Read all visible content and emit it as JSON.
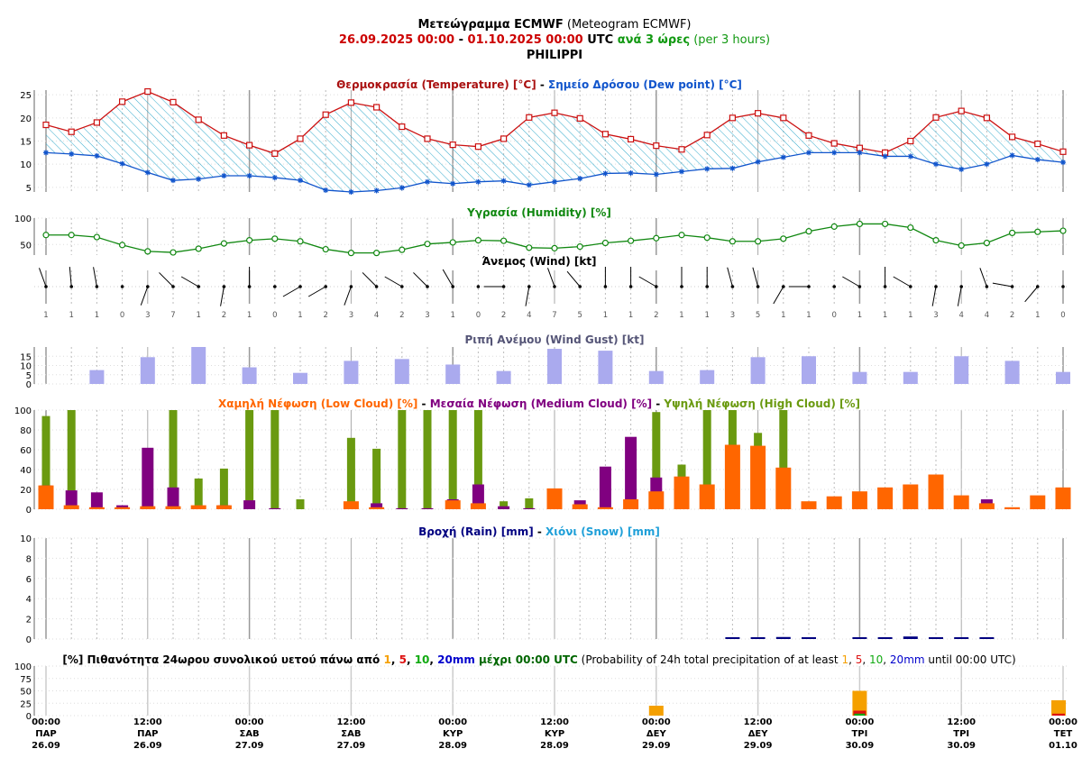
{
  "header": {
    "line1_bold": "Μετεώγραμμα ECMWF",
    "line1_normal": " (Meteogram ECMWF)",
    "date_start": "26.09.2025 00:00",
    "date_sep": " - ",
    "date_end": "01.10.2025 00:00",
    "utc": " UTC ",
    "every3": "ανά 3 ώρες",
    "per3": " (per 3 hours)",
    "location": "PHILIPPI"
  },
  "colors": {
    "temperature": "#cc1111",
    "dewpoint": "#1155cc",
    "humidity": "#118811",
    "gust": "#aaaaee",
    "gust_title": "#555577",
    "low_cloud": "#ff6600",
    "med_cloud": "#800080",
    "high_cloud": "#6a9a10",
    "rain": "#000080",
    "snow": "#1e9fd8",
    "p1": "#f5a000",
    "p5": "#dd1111",
    "p10": "#11aa11",
    "p20": "#0000cc",
    "hatch": "#33aacc",
    "grid": "#aaaaaa"
  },
  "chart_data": [
    {
      "type": "line",
      "id": "temperature",
      "title_parts": [
        {
          "text": "Θερμοκρασία (Temperature) [°C]",
          "color": "#aa1111"
        },
        {
          "text": " - ",
          "color": "#000000"
        },
        {
          "text": "Σημείο Δρόσου (Dew point) [°C]",
          "color": "#1155cc"
        }
      ],
      "ylim": [
        4,
        26
      ],
      "yticks": [
        5,
        10,
        15,
        20,
        25
      ],
      "series": [
        {
          "values": [
            18.5,
            17,
            19,
            23.5,
            25.7,
            23.4,
            19.6,
            16.2,
            14.1,
            12.3,
            15.5,
            20.7,
            23.3,
            22.3,
            18.1,
            15.5,
            14.2,
            13.8,
            15.5,
            20.1,
            21.1,
            19.9,
            16.5,
            15.4,
            14,
            13.2,
            16.3,
            20,
            21,
            20,
            16.2,
            14.5,
            13.5,
            12.5,
            15,
            20.1,
            21.5,
            20,
            15.9,
            14.4,
            12.7
          ]
        },
        {
          "values": [
            12.5,
            12.2,
            11.8,
            10.1,
            8.2,
            6.5,
            6.8,
            7.5,
            7.5,
            7.1,
            6.5,
            4.4,
            4,
            4.3,
            4.9,
            6.2,
            5.8,
            6.2,
            6.4,
            5.5,
            6.2,
            6.9,
            8,
            8.1,
            7.8,
            8.4,
            9,
            9.1,
            10.5,
            11.5,
            12.5,
            12.5,
            12.5,
            11.7,
            11.7,
            10,
            8.9,
            10,
            11.9,
            11,
            10.4
          ]
        }
      ]
    },
    {
      "type": "line",
      "id": "humidity",
      "title_parts": [
        {
          "text": "Υγρασία (Humidity) [%]",
          "color": "#118811"
        }
      ],
      "ylim": [
        30,
        100
      ],
      "yticks": [
        50,
        100
      ],
      "values": [
        68,
        68,
        64,
        49,
        37,
        35,
        42,
        52,
        58,
        61,
        56,
        41,
        34,
        34,
        40,
        51,
        54,
        58,
        57,
        44,
        43,
        46,
        53,
        57,
        62,
        68,
        63,
        56,
        56,
        61,
        75,
        84,
        89,
        89,
        82,
        58,
        48,
        53,
        72,
        74,
        76
      ]
    },
    {
      "type": "table",
      "id": "wind",
      "title_parts": [
        {
          "text": "Άνεμος (Wind) [kt]",
          "color": "#000000"
        }
      ],
      "speeds": [
        1,
        1,
        1,
        0,
        3,
        7,
        1,
        2,
        1,
        0,
        1,
        2,
        3,
        4,
        2,
        3,
        1,
        0,
        2,
        4,
        7,
        5,
        1,
        1,
        2,
        1,
        1,
        3,
        5,
        1,
        1,
        0,
        1,
        1,
        1,
        3,
        4,
        4,
        2,
        1,
        0
      ],
      "directions_deg": [
        340,
        355,
        350,
        0,
        200,
        315,
        300,
        190,
        0,
        0,
        240,
        240,
        200,
        315,
        300,
        315,
        330,
        0,
        270,
        190,
        340,
        320,
        0,
        0,
        300,
        0,
        0,
        345,
        345,
        210,
        270,
        270,
        300,
        0,
        300,
        190,
        190,
        340,
        280,
        220,
        0
      ]
    },
    {
      "type": "bar",
      "id": "gust",
      "title_parts": [
        {
          "text": "Ριπή Ανέμου (Wind Gust) [kt]",
          "color": "#555577"
        }
      ],
      "ylim": [
        0,
        20
      ],
      "yticks": [
        0,
        5,
        10,
        15
      ],
      "values": [
        null,
        null,
        7.5,
        null,
        14.5,
        null,
        20,
        null,
        9,
        null,
        6,
        null,
        12.5,
        null,
        13.5,
        null,
        10.5,
        null,
        7,
        null,
        19,
        null,
        18,
        null,
        7,
        null,
        7.5,
        null,
        14.5,
        null,
        15,
        null,
        6.5,
        null,
        6.5,
        null,
        15,
        null,
        12.5,
        null,
        6.5
      ]
    },
    {
      "type": "bar",
      "id": "clouds",
      "title_parts": [
        {
          "text": "Χαμηλή Νέφωση (Low Cloud) [%]",
          "color": "#ff6600"
        },
        {
          "text": " - ",
          "color": "#000000"
        },
        {
          "text": "Μεσαία Νέφωση (Medium Cloud) [%]",
          "color": "#800080"
        },
        {
          "text": " - ",
          "color": "#000000"
        },
        {
          "text": "Υψηλή Νέφωση (High Cloud) [%]",
          "color": "#6a9a10"
        }
      ],
      "ylim": [
        0,
        100
      ],
      "yticks": [
        0,
        20,
        40,
        60,
        80,
        100
      ],
      "series": [
        {
          "values": [
            94,
            100,
            0,
            0,
            0,
            100,
            31,
            41,
            100,
            100,
            10,
            0,
            72,
            61,
            100,
            100,
            100,
            100,
            8,
            11,
            0,
            0,
            0,
            0,
            98,
            45,
            100,
            100,
            77,
            100,
            0,
            0,
            0,
            0,
            0,
            0,
            0,
            0,
            0,
            0,
            0
          ]
        },
        {
          "values": [
            24,
            19,
            17,
            4,
            62,
            22,
            3,
            4,
            9,
            1,
            0,
            0,
            3,
            6,
            1,
            1,
            10,
            25,
            3,
            1,
            1,
            9,
            43,
            73,
            32,
            13,
            0,
            0,
            0,
            0,
            0,
            0,
            0,
            0,
            0,
            0,
            0,
            10,
            0,
            0,
            0
          ]
        },
        {
          "values": [
            24,
            4,
            2,
            2,
            3,
            3,
            4,
            4,
            0,
            0,
            0,
            0,
            8,
            2,
            0,
            0,
            9,
            6,
            0,
            0,
            21,
            5,
            2,
            10,
            18,
            33,
            25,
            65,
            64,
            42,
            8,
            13,
            18,
            22,
            25,
            35,
            14,
            6,
            2,
            14,
            22
          ]
        }
      ]
    },
    {
      "type": "bar",
      "id": "precip",
      "title_parts": [
        {
          "text": "Βροχή (Rain) [mm]",
          "color": "#000080"
        },
        {
          "text": " - ",
          "color": "#000000"
        },
        {
          "text": "Χιόνι (Snow) [mm]",
          "color": "#1e9fd8"
        }
      ],
      "ylim": [
        0,
        10
      ],
      "yticks": [
        0,
        2,
        4,
        6,
        8,
        10
      ],
      "series": [
        {
          "values": [
            0,
            0,
            0,
            0,
            0,
            0,
            0,
            0,
            0,
            0,
            0,
            0,
            0,
            0,
            0,
            0,
            0,
            0,
            0,
            0,
            0,
            0,
            0,
            0,
            0,
            0,
            0,
            0.1,
            0.1,
            0.2,
            0.1,
            0,
            0.1,
            0.1,
            0.25,
            0.1,
            0.15,
            0.1,
            0,
            0,
            0
          ]
        },
        {
          "values": [
            0,
            0,
            0,
            0,
            0,
            0,
            0,
            0,
            0,
            0,
            0,
            0,
            0,
            0,
            0,
            0,
            0,
            0,
            0,
            0,
            0,
            0,
            0,
            0,
            0,
            0,
            0,
            0,
            0,
            0,
            0,
            0,
            0,
            0,
            0,
            0,
            0,
            0,
            0,
            0,
            0
          ]
        }
      ]
    },
    {
      "type": "bar",
      "id": "probability",
      "title_parts": [
        {
          "text": "[%] Πιθανότητα 24ωρου συνολικού υετού πάνω από ",
          "color": "#000000",
          "bold": true
        },
        {
          "text": "1",
          "color": "#f5a000",
          "bold": true
        },
        {
          "text": ", ",
          "color": "#000000",
          "bold": true
        },
        {
          "text": "5",
          "color": "#dd1111",
          "bold": true
        },
        {
          "text": ", ",
          "color": "#000000",
          "bold": true
        },
        {
          "text": "10",
          "color": "#11aa11",
          "bold": true
        },
        {
          "text": ", ",
          "color": "#000000",
          "bold": true
        },
        {
          "text": "20mm",
          "color": "#0000cc",
          "bold": true
        },
        {
          "text": " μέχρι 00:00 UTC",
          "color": "#006600",
          "bold": true
        },
        {
          "text": " (Probability of 24h total precipitation of at least ",
          "color": "#000000"
        },
        {
          "text": "1",
          "color": "#f5a000"
        },
        {
          "text": ", ",
          "color": "#000000"
        },
        {
          "text": "5",
          "color": "#dd1111"
        },
        {
          "text": ", ",
          "color": "#000000"
        },
        {
          "text": "10",
          "color": "#11aa11"
        },
        {
          "text": ", ",
          "color": "#000000"
        },
        {
          "text": "20mm",
          "color": "#0000cc"
        },
        {
          "text": " until 00:00 UTC)",
          "color": "#000000"
        }
      ],
      "ylim": [
        0,
        100
      ],
      "yticks": [
        0,
        25,
        50,
        75,
        100
      ],
      "categories": [
        "29.09",
        "30.09",
        "01.10"
      ],
      "series": [
        {
          "name": "1",
          "values": [
            20,
            50,
            31
          ]
        },
        {
          "name": "5",
          "values": [
            0,
            10,
            4
          ]
        },
        {
          "name": "10",
          "values": [
            0,
            4,
            0
          ]
        },
        {
          "name": "20mm",
          "values": [
            0,
            0,
            0
          ]
        }
      ]
    }
  ],
  "x_axis": {
    "ticks": [
      {
        "time": "00:00",
        "day": "ΠΑΡ",
        "date": "26.09"
      },
      {
        "time": "12:00",
        "day": "ΠΑΡ",
        "date": "26.09"
      },
      {
        "time": "00:00",
        "day": "ΣΑΒ",
        "date": "27.09"
      },
      {
        "time": "12:00",
        "day": "ΣΑΒ",
        "date": "27.09"
      },
      {
        "time": "00:00",
        "day": "ΚΥΡ",
        "date": "28.09"
      },
      {
        "time": "12:00",
        "day": "ΚΥΡ",
        "date": "28.09"
      },
      {
        "time": "00:00",
        "day": "ΔΕΥ",
        "date": "29.09"
      },
      {
        "time": "12:00",
        "day": "ΔΕΥ",
        "date": "29.09"
      },
      {
        "time": "00:00",
        "day": "ΤΡΙ",
        "date": "30.09"
      },
      {
        "time": "12:00",
        "day": "ΤΡΙ",
        "date": "30.09"
      },
      {
        "time": "00:00",
        "day": "ΤΕΤ",
        "date": "01.10"
      }
    ]
  }
}
